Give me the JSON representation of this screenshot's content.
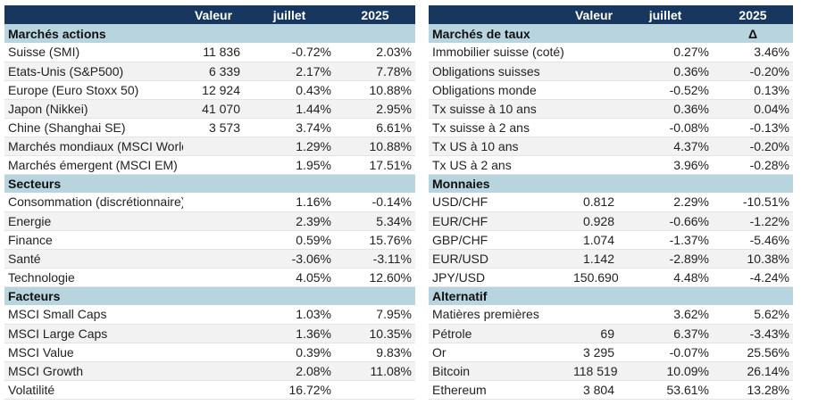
{
  "left": {
    "headers": [
      "",
      "Valeur",
      "juillet",
      "2025"
    ],
    "sections": [
      {
        "title": "Marchés actions",
        "tag": "",
        "rows": [
          [
            "Suisse (SMI)",
            "11 836",
            "-0.72%",
            "2.03%"
          ],
          [
            "Etats-Unis (S&P500)",
            "6 339",
            "2.17%",
            "7.78%"
          ],
          [
            "Europe (Euro Stoxx 50)",
            "12 924",
            "0.43%",
            "10.88%"
          ],
          [
            "Japon (Nikkei)",
            "41 070",
            "1.44%",
            "2.95%"
          ],
          [
            "Chine (Shanghai SE)",
            "3 573",
            "3.74%",
            "6.61%"
          ],
          [
            "Marchés mondiaux (MSCI World)",
            "",
            "1.29%",
            "10.88%"
          ],
          [
            "Marchés émergent (MSCI EM)",
            "",
            "1.95%",
            "17.51%"
          ]
        ]
      },
      {
        "title": "Secteurs",
        "tag": "",
        "rows": [
          [
            "Consommation (discrétionnaire)",
            "",
            "1.16%",
            "-0.14%"
          ],
          [
            "Energie",
            "",
            "2.39%",
            "5.34%"
          ],
          [
            "Finance",
            "",
            "0.59%",
            "15.76%"
          ],
          [
            "Santé",
            "",
            "-3.06%",
            "-3.11%"
          ],
          [
            "Technologie",
            "",
            "4.05%",
            "12.60%"
          ]
        ]
      },
      {
        "title": "Facteurs",
        "tag": "",
        "rows": [
          [
            "MSCI Small Caps",
            "",
            "1.03%",
            "7.95%"
          ],
          [
            "MSCI Large Caps",
            "",
            "1.36%",
            "10.35%"
          ],
          [
            "MSCI Value",
            "",
            "0.39%",
            "9.83%"
          ],
          [
            "MSCI Growth",
            "",
            "2.08%",
            "11.08%"
          ],
          [
            "Volatilité",
            "",
            "16.72%",
            ""
          ]
        ]
      }
    ]
  },
  "right": {
    "headers": [
      "",
      "Valeur",
      "juillet",
      "2025"
    ],
    "sections": [
      {
        "title": "Marchés de taux",
        "tag": "Δ",
        "rows": [
          [
            "Immobilier suisse (coté)",
            "",
            "0.27%",
            "3.46%"
          ],
          [
            "Obligations suisses",
            "",
            "0.36%",
            "-0.20%"
          ],
          [
            "Obligations monde",
            "",
            "-0.52%",
            "0.13%"
          ],
          [
            "Tx suisse à 10 ans",
            "",
            "0.36%",
            "0.04%"
          ],
          [
            "Tx suisse à 2 ans",
            "",
            "-0.08%",
            "-0.13%"
          ],
          [
            "Tx US à 10 ans",
            "",
            "4.37%",
            "-0.20%"
          ],
          [
            "Tx US à 2 ans",
            "",
            "3.96%",
            "-0.28%"
          ]
        ]
      },
      {
        "title": "Monnaies",
        "tag": "",
        "rows": [
          [
            "USD/CHF",
            "0.812",
            "2.29%",
            "-10.51%"
          ],
          [
            "EUR/CHF",
            "0.928",
            "-0.66%",
            "-1.22%"
          ],
          [
            "GBP/CHF",
            "1.074",
            "-1.37%",
            "-5.46%"
          ],
          [
            "EUR/USD",
            "1.142",
            "-2.89%",
            "10.38%"
          ],
          [
            "JPY/USD",
            "150.690",
            "4.48%",
            "-4.24%"
          ]
        ]
      },
      {
        "title": "Alternatif",
        "tag": "",
        "rows": [
          [
            "Matières premières",
            "",
            "3.62%",
            "5.62%"
          ],
          [
            "Pétrole",
            "69",
            "6.37%",
            "-3.43%"
          ],
          [
            "Or",
            "3 295",
            "-0.07%",
            "25.56%"
          ],
          [
            "Bitcoin",
            "118 519",
            "10.09%",
            "26.14%"
          ],
          [
            "Ethereum",
            "3 804",
            "53.61%",
            "13.28%"
          ]
        ]
      }
    ]
  }
}
